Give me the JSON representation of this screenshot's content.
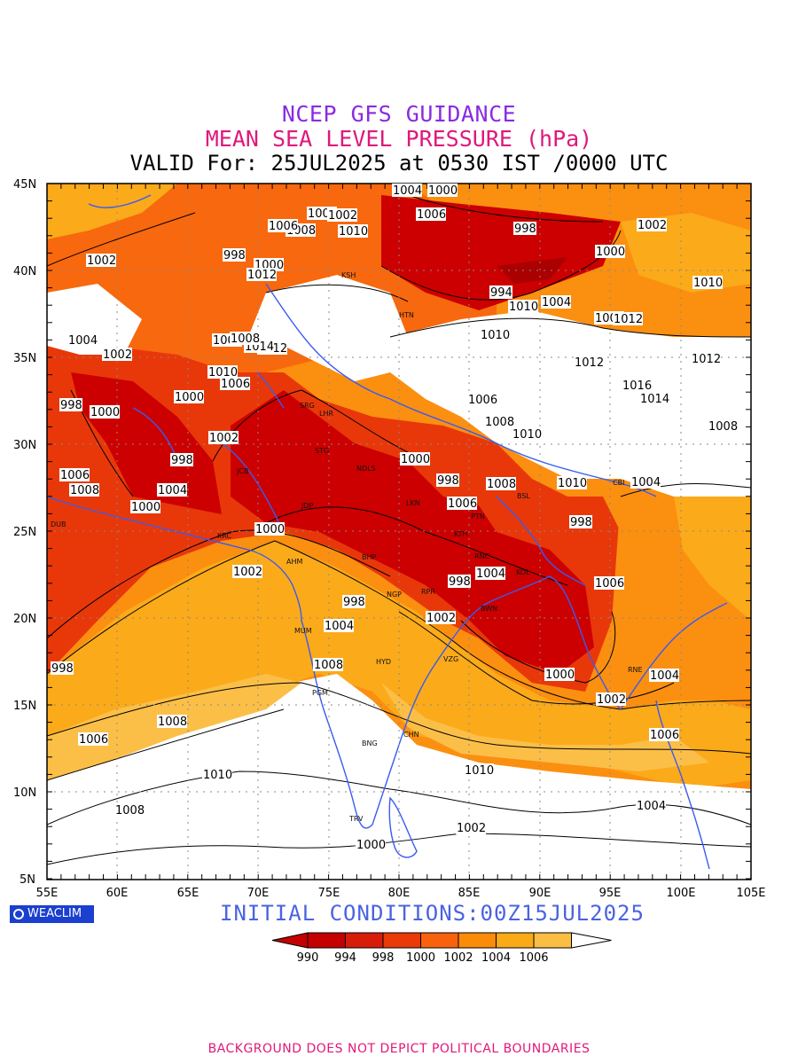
{
  "title_line1": "NCEP GFS GUIDANCE",
  "title_line2": "MEAN SEA LEVEL PRESSURE (hPa)",
  "title_line3": "VALID For: 25JUL2025 at 0530 IST /0000 UTC",
  "initial_conditions": "INITIAL  CONDITIONS:00Z15JUL2025",
  "badge_text": "WEACLIM",
  "footer": "BACKGROUND DOES NOT DEPICT POLITICAL BOUNDARIES",
  "lat_labels": [
    "45N",
    "40N",
    "35N",
    "30N",
    "25N",
    "20N",
    "15N",
    "10N",
    "5N"
  ],
  "lon_labels": [
    "55E",
    "60E",
    "65E",
    "70E",
    "75E",
    "80E",
    "85E",
    "90E",
    "95E",
    "100E",
    "105E"
  ],
  "colorbar": {
    "labels": [
      "990",
      "994",
      "998",
      "1000",
      "1002",
      "1004",
      "1006"
    ],
    "colors": [
      "#c40000",
      "#d81c0a",
      "#ea3a08",
      "#f8620c",
      "#fb8c0a",
      "#fbaa17",
      "#fbbe45"
    ]
  },
  "colors": {
    "deep_low": "#cc0000",
    "low": "#e8380a",
    "mid": "#f8680e",
    "moderate": "#fb8f10",
    "light": "#fbaa1a",
    "pale": "#fbbf48",
    "background": "#ffffff",
    "coast": "#3a5bf0"
  },
  "cities": [
    "SRG",
    "LHR",
    "STG",
    "NDLS",
    "JCB",
    "JDP",
    "LKN",
    "PTN",
    "KTH",
    "RNC",
    "BHP",
    "AHM",
    "KRC",
    "DUB",
    "KOL",
    "NGP",
    "RPR",
    "BWN",
    "MUM",
    "HYD",
    "VZG",
    "PGM",
    "CHN",
    "BNG",
    "TRV",
    "HTN",
    "KSH",
    "CBI",
    "BSL",
    "RNE"
  ],
  "contour_labels": [
    {
      "v": "1004"
    },
    {
      "v": "1000"
    },
    {
      "v": "1002"
    },
    {
      "v": "1006"
    },
    {
      "v": "1008"
    },
    {
      "v": "1010"
    },
    {
      "v": "998"
    },
    {
      "v": "1002"
    },
    {
      "v": "1000"
    },
    {
      "v": "998"
    },
    {
      "v": "1006"
    },
    {
      "v": "1012"
    },
    {
      "v": "1000"
    },
    {
      "v": "994"
    },
    {
      "v": "1002"
    },
    {
      "v": "1004"
    },
    {
      "v": "1010"
    },
    {
      "v": "1002"
    },
    {
      "v": "1004"
    },
    {
      "v": "1008"
    },
    {
      "v": "1006"
    },
    {
      "v": "1010"
    },
    {
      "v": "1012"
    },
    {
      "v": "1014"
    },
    {
      "v": "1008"
    },
    {
      "v": "1002"
    },
    {
      "v": "1000"
    },
    {
      "v": "998"
    },
    {
      "v": "1000"
    },
    {
      "v": "1002"
    },
    {
      "v": "998"
    },
    {
      "v": "1012"
    },
    {
      "v": "1016"
    },
    {
      "v": "1014"
    },
    {
      "v": "1012"
    },
    {
      "v": "1006"
    },
    {
      "v": "1008"
    },
    {
      "v": "1010"
    },
    {
      "v": "1000"
    },
    {
      "v": "998"
    },
    {
      "v": "1004"
    },
    {
      "v": "1010"
    },
    {
      "v": "1008"
    },
    {
      "v": "1006"
    },
    {
      "v": "998"
    },
    {
      "v": "1000"
    },
    {
      "v": "1002"
    },
    {
      "v": "1000"
    },
    {
      "v": "998"
    },
    {
      "v": "1004"
    },
    {
      "v": "1002"
    },
    {
      "v": "1006"
    },
    {
      "v": "1000"
    },
    {
      "v": "998"
    },
    {
      "v": "1002"
    },
    {
      "v": "1004"
    },
    {
      "v": "1006"
    },
    {
      "v": "1004"
    },
    {
      "v": "1008"
    },
    {
      "v": "1006"
    },
    {
      "v": "1008"
    },
    {
      "v": "1010"
    },
    {
      "v": "1010"
    },
    {
      "v": "1008"
    },
    {
      "v": "1000"
    },
    {
      "v": "1004"
    },
    {
      "v": "1002"
    },
    {
      "v": "998"
    },
    {
      "v": "1006"
    },
    {
      "v": "1004"
    },
    {
      "v": "1008"
    },
    {
      "v": "1010"
    },
    {
      "v": "1006"
    },
    {
      "v": "1012"
    },
    {
      "v": "1010"
    },
    {
      "v": "1008"
    }
  ]
}
